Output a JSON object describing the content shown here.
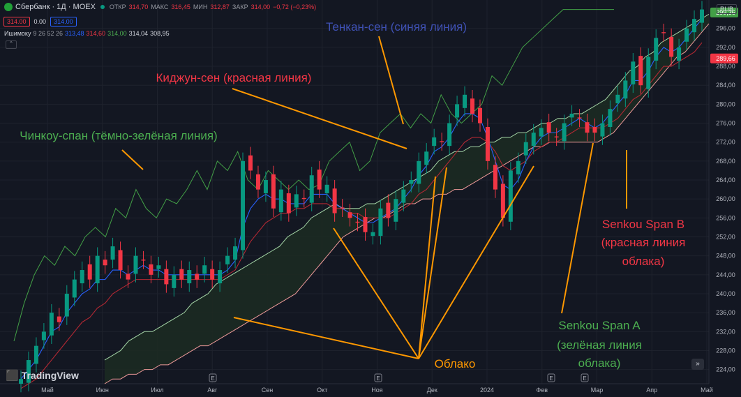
{
  "header": {
    "title": "Сбербанк · 1Д · MOEX",
    "open_label": "ОТКР",
    "open": "314,70",
    "high_label": "МАКС",
    "high": "316,45",
    "low_label": "МИН",
    "low": "312,87",
    "close_label": "ЗАКР",
    "close": "314,00",
    "change": "−0,72 (−0,23%)",
    "sell_price": "314.00",
    "spread": "0.00",
    "buy_price": "314.00",
    "currency": "RUB"
  },
  "indicator": {
    "name": "Ишимоку",
    "params": "9 26 52 26",
    "tenkan": "313,48",
    "kijun": "314,60",
    "chikou": "314,00",
    "span_a": "314,04",
    "span_b": "308,95",
    "collapse_icon": "chevron-up-icon"
  },
  "branding": {
    "logo_text": "TradingView"
  },
  "goto_button": "»",
  "colors": {
    "background": "#131722",
    "up": "#089981",
    "down": "#f23645",
    "tenkan": "#2962ff",
    "kijun": "#b22833",
    "chikou": "#43a047",
    "span_a": "#a5d6a7",
    "span_b": "#ef9a9a",
    "cloud": "#1c2a22",
    "annotation_arrow": "#ff9800"
  },
  "chart_data": {
    "type": "candlestick",
    "y_ticks": [
      "224,00",
      "228,00",
      "232,00",
      "236,00",
      "240,00",
      "244,00",
      "248,00",
      "252,00",
      "256,00",
      "260,00",
      "264,00",
      "268,00",
      "272,00",
      "276,00",
      "280,00",
      "284,00",
      "288,00",
      "292,00",
      "296,00"
    ],
    "price_labels": [
      {
        "value": "299,36",
        "color": "#43a047"
      },
      {
        "value": "289,66",
        "color": "#f23645"
      }
    ],
    "x_ticks": [
      "Май",
      "Июн",
      "Июл",
      "Авг",
      "Сен",
      "Окт",
      "Ноя",
      "Дек",
      "2024",
      "Фев",
      "Мар",
      "Апр",
      "Май"
    ],
    "ylim": [
      221,
      302
    ],
    "event_markers": [
      "E",
      "E",
      "E",
      "E"
    ],
    "series": {
      "close": [
        222,
        226,
        229,
        232,
        236,
        234,
        240,
        243,
        245,
        243,
        248,
        246,
        250,
        245,
        243,
        248,
        247,
        244,
        246,
        242,
        244,
        243,
        245,
        243,
        246,
        243,
        245,
        248,
        250,
        268,
        266,
        262,
        264,
        258,
        262,
        257,
        261,
        260,
        265,
        262,
        263,
        257,
        258,
        256,
        255,
        253,
        253,
        258,
        256,
        260,
        262,
        264,
        268,
        270,
        273,
        272,
        276,
        280,
        282,
        278,
        276,
        268,
        262,
        256,
        266,
        268,
        272,
        274,
        275,
        274,
        273,
        276,
        278,
        277,
        274,
        274,
        276,
        279,
        282,
        285,
        289,
        284,
        290,
        294,
        295,
        290,
        292,
        296,
        298,
        300
      ],
      "tenkan": [
        222,
        224,
        226,
        229,
        232,
        233,
        236,
        238,
        240,
        241,
        243,
        243,
        245,
        245,
        244,
        245,
        246,
        245,
        245,
        244,
        244,
        244,
        244,
        244,
        244,
        244,
        244,
        245,
        247,
        254,
        258,
        260,
        261,
        260,
        260,
        259,
        259,
        259,
        261,
        261,
        261,
        259,
        258,
        257,
        256,
        255,
        255,
        256,
        257,
        258,
        260,
        262,
        265,
        267,
        270,
        271,
        273,
        276,
        278,
        278,
        277,
        273,
        268,
        263,
        262,
        264,
        268,
        271,
        273,
        274,
        274,
        275,
        276,
        277,
        276,
        275,
        276,
        278,
        280,
        282,
        285,
        285,
        287,
        290,
        292,
        291,
        292,
        294,
        296,
        298
      ],
      "kijun": [
        220,
        221,
        222,
        224,
        226,
        228,
        230,
        232,
        234,
        235,
        237,
        238,
        240,
        241,
        242,
        243,
        243,
        243,
        243,
        243,
        243,
        243,
        243,
        243,
        243,
        243,
        243,
        244,
        245,
        248,
        251,
        253,
        255,
        256,
        257,
        257,
        258,
        258,
        259,
        259,
        259,
        258,
        258,
        257,
        257,
        256,
        256,
        256,
        256,
        257,
        258,
        259,
        261,
        262,
        264,
        266,
        268,
        270,
        272,
        273,
        273,
        272,
        270,
        267,
        266,
        267,
        268,
        270,
        271,
        272,
        272,
        273,
        274,
        275,
        275,
        275,
        275,
        276,
        277,
        279,
        281,
        282,
        284,
        286,
        288,
        288,
        289,
        290,
        291,
        293
      ],
      "chikou": [
        230,
        238,
        244,
        248,
        246,
        250,
        248,
        252,
        254,
        252,
        258,
        256,
        262,
        258,
        256,
        260,
        259,
        262,
        266,
        262,
        268,
        266,
        270,
        264,
        262,
        266,
        264,
        262,
        264,
        262,
        263,
        268,
        270,
        272,
        266,
        268,
        274,
        276,
        278,
        275,
        278,
        276,
        282,
        278,
        276,
        278,
        280,
        286,
        284,
        288,
        292,
        294,
        296,
        298,
        300,
        300,
        300,
        300,
        300,
        300
      ],
      "span_a": [
        226,
        227,
        228,
        230,
        231,
        232,
        232,
        233,
        234,
        235,
        236,
        238,
        239,
        240,
        242,
        243,
        244,
        245,
        246,
        247,
        248,
        249,
        250,
        252,
        253,
        254,
        256,
        257,
        258,
        259,
        258,
        258,
        258,
        259,
        259,
        260,
        261,
        262,
        263,
        264,
        265,
        266,
        268,
        269,
        270,
        270,
        271,
        271,
        272,
        272,
        273,
        273,
        274,
        274,
        275,
        276,
        276,
        277,
        277,
        278,
        278,
        279,
        280,
        281,
        283,
        285,
        287,
        288,
        290,
        291,
        293,
        294,
        295,
        296,
        297,
        298,
        299
      ],
      "span_b": [
        221,
        222,
        222,
        223,
        223,
        224,
        224,
        225,
        225,
        226,
        227,
        228,
        229,
        229,
        230,
        231,
        232,
        233,
        234,
        235,
        236,
        237,
        238,
        239,
        240,
        242,
        244,
        246,
        248,
        250,
        252,
        253,
        254,
        255,
        256,
        256,
        257,
        258,
        259,
        259,
        260,
        260,
        261,
        261,
        262,
        262,
        263,
        264,
        265,
        266,
        267,
        268,
        269,
        270,
        271,
        271,
        272,
        272,
        272,
        272,
        272,
        272,
        272,
        273,
        274,
        276,
        278,
        280,
        282,
        284,
        286,
        288,
        290,
        291,
        293,
        295,
        297
      ]
    },
    "annotations": [
      {
        "text": "Тенкан-сен (синяя линия)",
        "color": "#3f51b5"
      },
      {
        "text": "Киджун-сен (красная линия)",
        "color": "#f23645"
      },
      {
        "text": "Чинкоу-спан (тёмно-зелёная линия)",
        "color": "#4caf50"
      },
      {
        "text": "Senkou Span B (красная линия облака)",
        "color": "#f23645"
      },
      {
        "text": "Senkou Span A (зелёная линия облака)",
        "color": "#4caf50"
      },
      {
        "text": "Облако",
        "color": "#ff9800"
      }
    ]
  }
}
